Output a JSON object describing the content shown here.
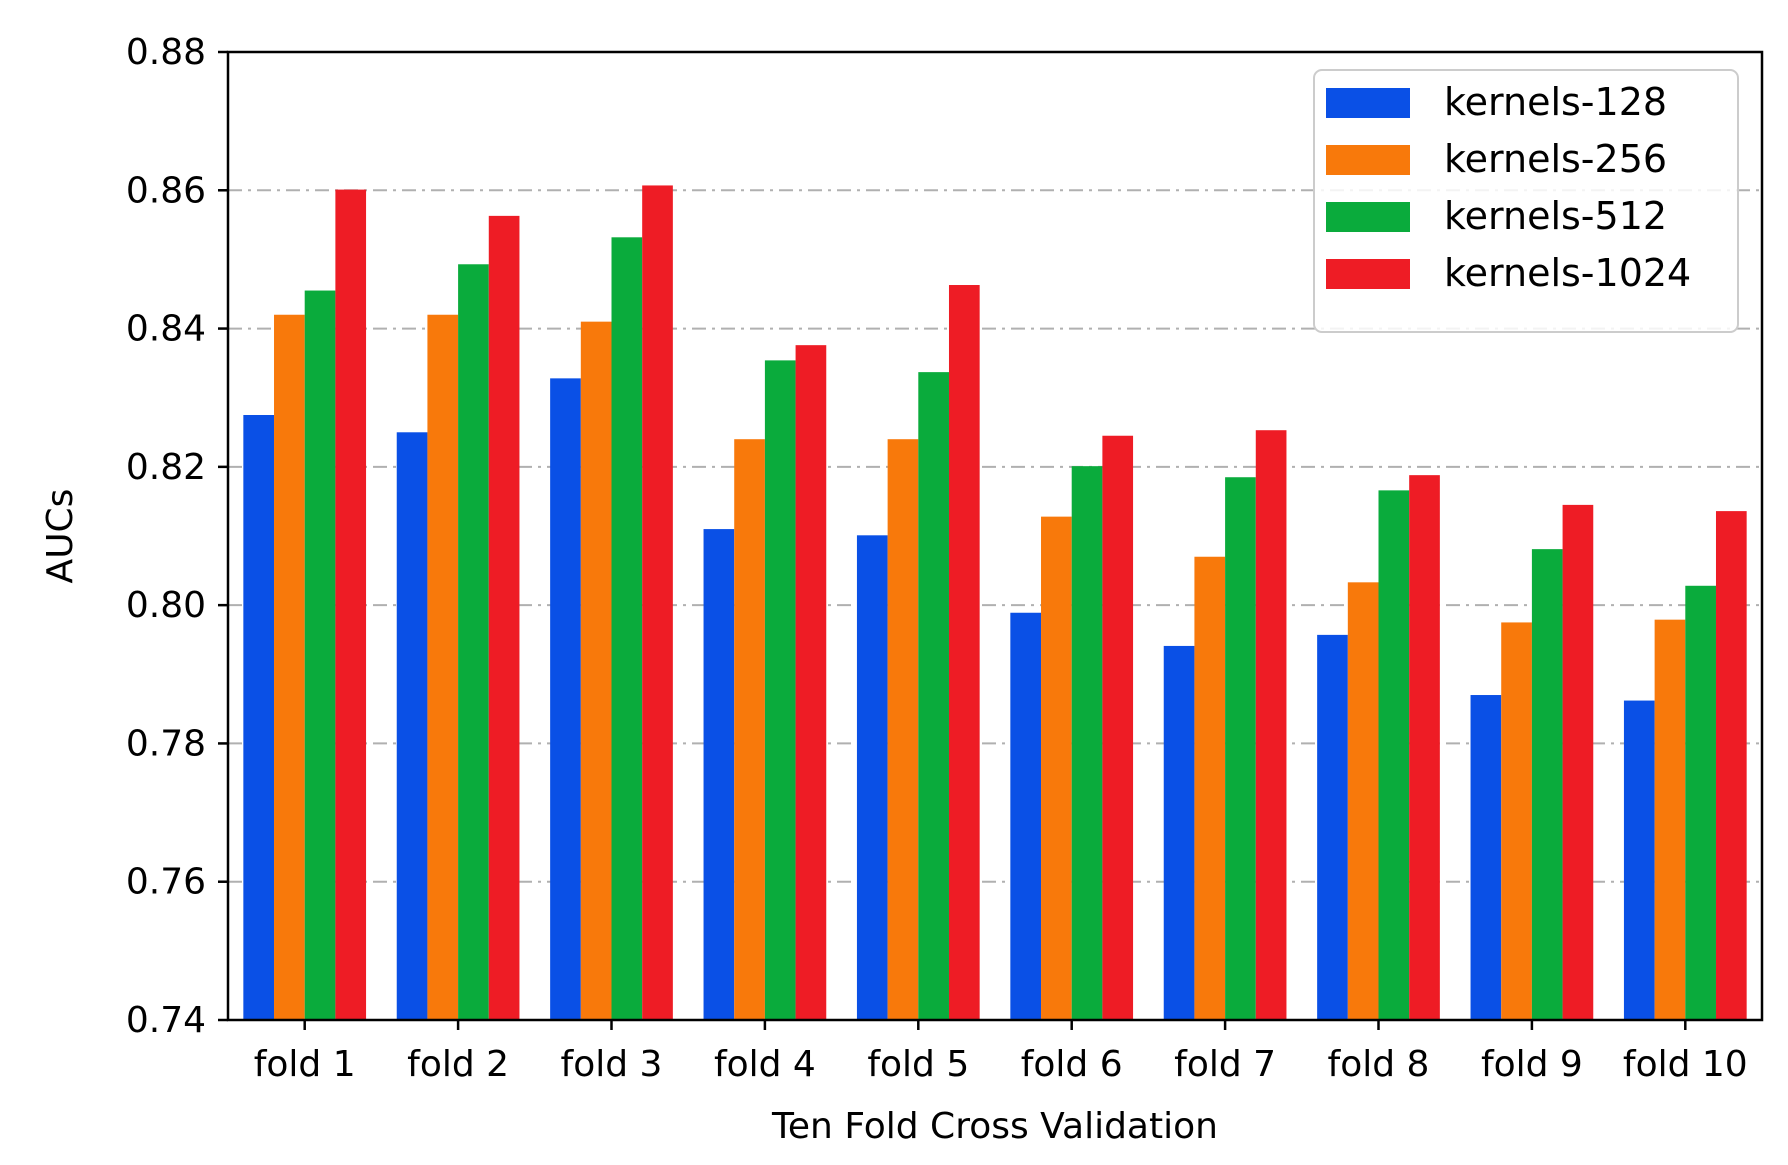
{
  "chart_data": {
    "type": "bar",
    "title": "",
    "xlabel": "Ten Fold Cross Validation",
    "ylabel": "AUCs",
    "ylim": [
      0.74,
      0.88
    ],
    "yticks": [
      "0.74",
      "0.76",
      "0.78",
      "0.80",
      "0.82",
      "0.84",
      "0.86",
      "0.88"
    ],
    "grid": "horizontal dash-dot",
    "legend_position": "top-right",
    "categories": [
      "fold 1",
      "fold 2",
      "fold 3",
      "fold 4",
      "fold 5",
      "fold 6",
      "fold 7",
      "fold 8",
      "fold 9",
      "fold 10"
    ],
    "series": [
      {
        "name": "kernels-128",
        "color": "#0a50e6",
        "values": [
          0.8275,
          0.825,
          0.8328,
          0.811,
          0.8101,
          0.7989,
          0.7941,
          0.7957,
          0.787,
          0.7862
        ]
      },
      {
        "name": "kernels-256",
        "color": "#f8790b",
        "values": [
          0.842,
          0.842,
          0.841,
          0.824,
          0.824,
          0.8128,
          0.807,
          0.8033,
          0.7975,
          0.7979
        ]
      },
      {
        "name": "kernels-512",
        "color": "#0aab3c",
        "values": [
          0.8455,
          0.8493,
          0.8532,
          0.8354,
          0.8337,
          0.8201,
          0.8185,
          0.8166,
          0.8081,
          0.8028
        ]
      },
      {
        "name": "kernels-1024",
        "color": "#ee1c25",
        "values": [
          0.8601,
          0.8563,
          0.8607,
          0.8376,
          0.8463,
          0.8245,
          0.8253,
          0.8188,
          0.8145,
          0.8136
        ]
      }
    ]
  }
}
